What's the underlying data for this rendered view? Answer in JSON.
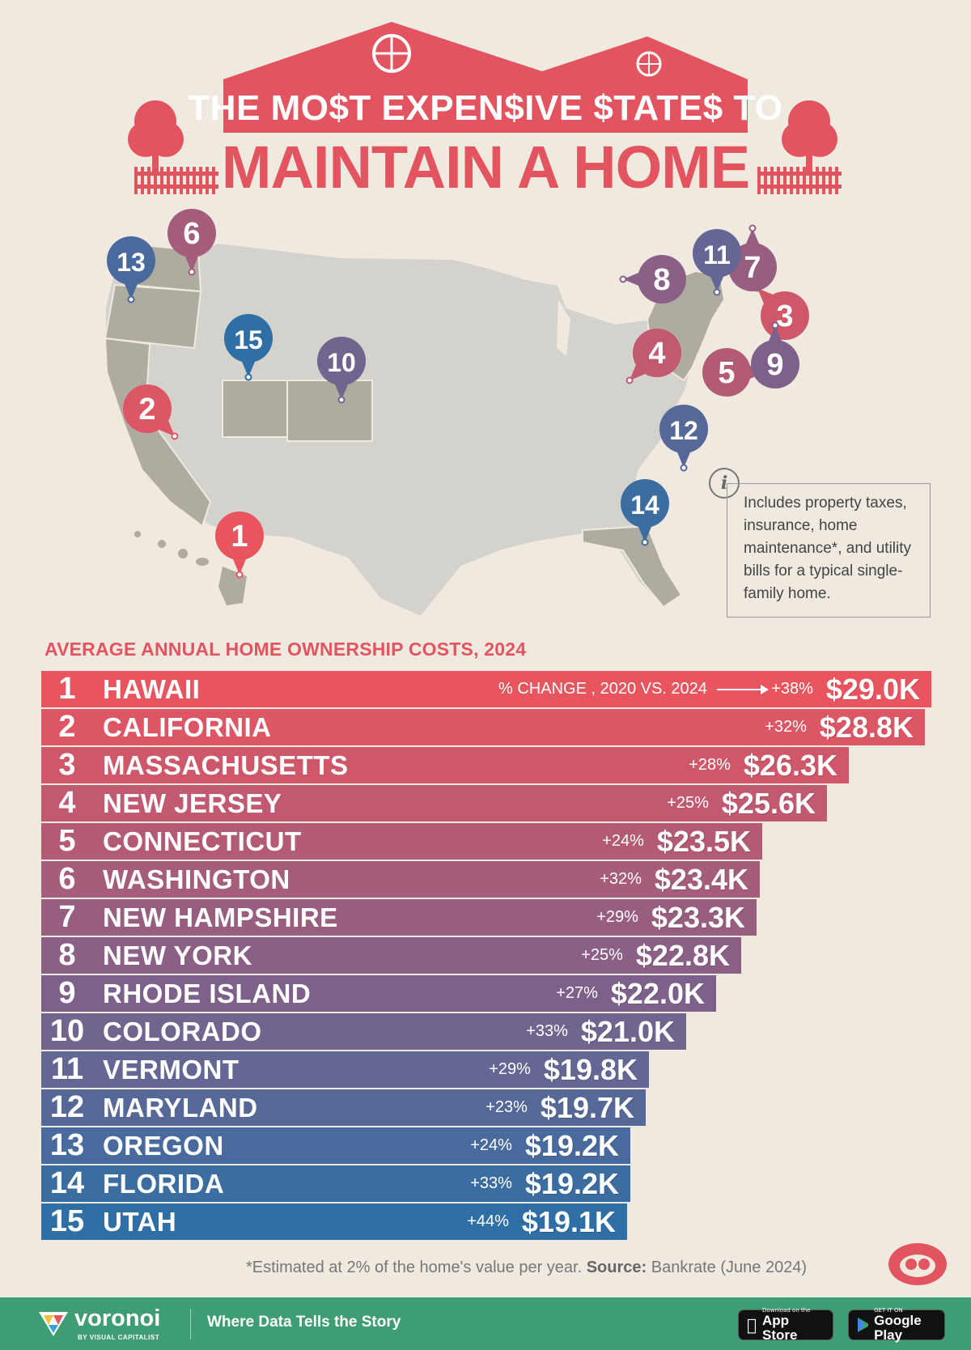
{
  "title": {
    "line1": "THE MO$T EXPEN$IVE $TATE$ TO",
    "line2": "MAINTAIN A HOME"
  },
  "info_note": "Includes property taxes, insurance, home maintenance*, and utility bills for a typical single-family home.",
  "colors": {
    "background": "#efe9df",
    "accent_red": "#e35461",
    "bar_top": "#e9555f",
    "bar_mid": "#8b5f86",
    "bar_bottom": "#2f6fa6",
    "map_base": "#d4d2cc",
    "map_highlight": "#b0aba0",
    "footer_green": "#3f9d73"
  },
  "map_pins": [
    {
      "rank": "1",
      "state": "Hawaii"
    },
    {
      "rank": "2",
      "state": "California"
    },
    {
      "rank": "3",
      "state": "Massachusetts"
    },
    {
      "rank": "4",
      "state": "New Jersey"
    },
    {
      "rank": "5",
      "state": "Connecticut"
    },
    {
      "rank": "6",
      "state": "Washington"
    },
    {
      "rank": "7",
      "state": "New Hampshire"
    },
    {
      "rank": "8",
      "state": "New York"
    },
    {
      "rank": "9",
      "state": "Rhode Island"
    },
    {
      "rank": "10",
      "state": "Colorado"
    },
    {
      "rank": "11",
      "state": "Vermont"
    },
    {
      "rank": "12",
      "state": "Maryland"
    },
    {
      "rank": "13",
      "state": "Oregon"
    },
    {
      "rank": "14",
      "state": "Florida"
    },
    {
      "rank": "15",
      "state": "Utah"
    }
  ],
  "chart_data": {
    "type": "bar",
    "orientation": "horizontal",
    "subtitle": "AVERAGE ANNUAL HOME OWNERSHIP COSTS, 2024",
    "change_label": "% CHANGE , 2020 VS. 2024",
    "unit": "USD thousands",
    "categories": [
      "HAWAII",
      "CALIFORNIA",
      "MASSACHUSETTS",
      "NEW JERSEY",
      "CONNECTICUT",
      "WASHINGTON",
      "NEW HAMPSHIRE",
      "NEW YORK",
      "RHODE ISLAND",
      "COLORADO",
      "VERMONT",
      "MARYLAND",
      "OREGON",
      "FLORIDA",
      "UTAH"
    ],
    "ranks": [
      "1",
      "2",
      "3",
      "4",
      "5",
      "6",
      "7",
      "8",
      "9",
      "10",
      "11",
      "12",
      "13",
      "14",
      "15"
    ],
    "values": [
      29.0,
      28.8,
      26.3,
      25.6,
      23.5,
      23.4,
      23.3,
      22.8,
      22.0,
      21.0,
      19.8,
      19.7,
      19.2,
      19.2,
      19.1
    ],
    "value_labels": [
      "$29.0K",
      "$28.8K",
      "$26.3K",
      "$25.6K",
      "$23.5K",
      "$23.4K",
      "$23.3K",
      "$22.8K",
      "$22.0K",
      "$21.0K",
      "$19.8K",
      "$19.7K",
      "$19.2K",
      "$19.2K",
      "$19.1K"
    ],
    "change_labels": [
      "+38%",
      "+32%",
      "+28%",
      "+25%",
      "+24%",
      "+32%",
      "+29%",
      "+25%",
      "+27%",
      "+33%",
      "+29%",
      "+23%",
      "+24%",
      "+33%",
      "+44%"
    ]
  },
  "footnote": {
    "text": "*Estimated at 2% of the home's value per year.",
    "source_label": "Source:",
    "source": "Bankrate (June 2024)"
  },
  "footer": {
    "brand": "voronoi",
    "brand_sub": "BY VISUAL CAPITALIST",
    "tagline": "Where Data Tells the Story",
    "app_store_small": "Download on the",
    "app_store": "App Store",
    "google_play_small": "GET IT ON",
    "google_play": "Google Play"
  }
}
